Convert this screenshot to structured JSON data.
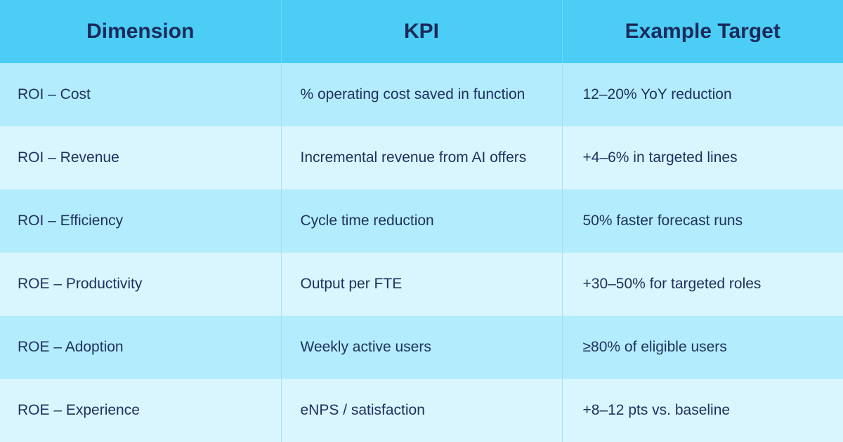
{
  "header": {
    "dimension": "Dimension",
    "kpi": "KPI",
    "target": "Example Target"
  },
  "rows": [
    {
      "dimension": "ROI – Cost",
      "kpi": "% operating cost saved in function",
      "target": "12–20% YoY reduction"
    },
    {
      "dimension": "ROI – Revenue",
      "kpi": "Incremental revenue from AI offers",
      "target": "+4–6% in targeted lines"
    },
    {
      "dimension": "ROI – Efficiency",
      "kpi": "Cycle time reduction",
      "target": "50% faster forecast runs"
    },
    {
      "dimension": "ROE – Productivity",
      "kpi": "Output per FTE",
      "target": "+30–50% for targeted roles"
    },
    {
      "dimension": "ROE – Adoption",
      "kpi": "Weekly active users",
      "target": "≥80% of eligible users"
    },
    {
      "dimension": "ROE – Experience",
      "kpi": "eNPS / satisfaction",
      "target": "+8–12 pts vs. baseline"
    }
  ],
  "colors": {
    "header_bg": "#4bcdf6",
    "header_text": "#1c2a5a",
    "row_dark": "#b3ecfc",
    "row_light": "#d9f5fd",
    "body_text": "#1f2f5f"
  }
}
